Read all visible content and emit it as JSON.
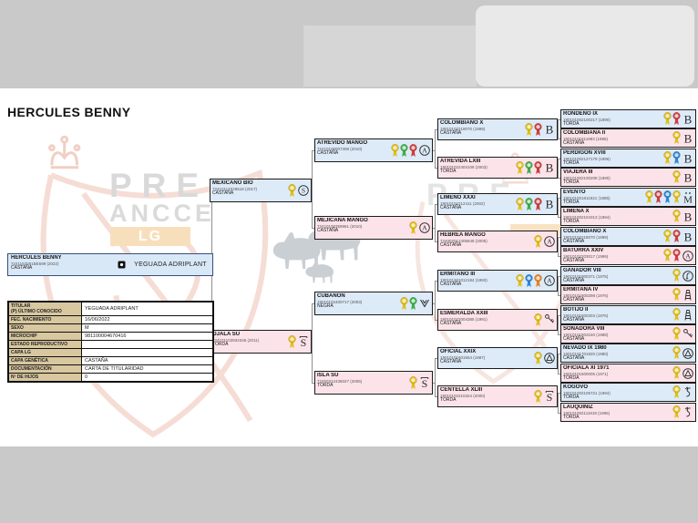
{
  "page": {
    "title": "HERCULES BENNY"
  },
  "watermark": {
    "line1": "PRE",
    "line2": "ANCCE",
    "badge": "LG"
  },
  "icons": {
    "subject_badge": "photo-icon",
    "brand_suffix": "brand-icon",
    "rosette": "rosette-icon"
  },
  "subject": {
    "name": "HERCULES BENNY",
    "code": "7241152001BE599 (2022)",
    "coat": "CASTAÑA",
    "owner": "YEGUADA ADRIPLANT"
  },
  "info_table": {
    "rows": [
      {
        "label": "TITULAR",
        "label2": "(P) ÚLTIMO CONOCIDO",
        "value": "YEGUADA ADRIPLANT"
      },
      {
        "label": "FEC. NACIMIENTO",
        "label2": "",
        "value": "16/06/2022"
      },
      {
        "label": "SEXO",
        "label2": "",
        "value": "M"
      },
      {
        "label": "MICROCHIP",
        "label2": "",
        "value": "981100004670416"
      },
      {
        "label": "ESTADO REPRODUCTIVO",
        "label2": "",
        "value": ""
      },
      {
        "label": "CAPA LG",
        "label2": "",
        "value": ""
      },
      {
        "label": "CAPA GENÉTICA",
        "label2": "",
        "value": "CASTAÑA"
      },
      {
        "label": "DOCUMENTACIÓN",
        "label2": "",
        "value": "CARTA DE TITULARIDAD"
      },
      {
        "label": "Nº DE HIJOS",
        "label2": "",
        "value": "0"
      }
    ]
  },
  "pedigree": {
    "generations": [
      [
        {
          "name": "MEXICANO BIO",
          "code": "72410117029518 (2017)",
          "coat": "CASTAÑA",
          "sex": "m",
          "rosettes": [
            "yellow"
          ],
          "brand": "circle-s"
        },
        {
          "name": "OJALA SU",
          "code": "724101102834345 (2011)",
          "coat": "TORDA",
          "sex": "f",
          "rosettes": [
            "yellow"
          ],
          "brand": "s-bar"
        }
      ],
      [
        {
          "name": "ATREVIDO MANGO",
          "code": "72410100007308 (2010)",
          "coat": "CASTAÑA",
          "sex": "m",
          "rosettes": [
            "yellow",
            "green",
            "red"
          ],
          "brand": "circle-a"
        },
        {
          "name": "MEJICANA MANGO",
          "code": "72410100358961 (2010)",
          "coat": "CASTAÑA",
          "sex": "f",
          "rosettes": [
            "yellow"
          ],
          "brand": "circle-a"
        },
        {
          "name": "CUBANON",
          "code": "19010102400717 (2003)",
          "coat": "NEGRA",
          "sex": "m",
          "rosettes": [
            "yellow",
            "green"
          ],
          "brand": "bird"
        },
        {
          "name": "ISLA SU",
          "code": "72450312436027 (2005)",
          "coat": "TORDA",
          "sex": "f",
          "rosettes": [
            "yellow"
          ],
          "brand": "s-bar"
        }
      ],
      [
        {
          "name": "COLOMBIANO X",
          "code": "19010102218070 (1999)",
          "coat": "CASTAÑA",
          "sex": "m",
          "rosettes": [
            "yellow",
            "red"
          ],
          "brand": "b"
        },
        {
          "name": "ATREVIDA LXIII",
          "code": "190101022404108 (2003)",
          "coat": "TORDA",
          "sex": "f",
          "rosettes": [
            "yellow",
            "green",
            "red"
          ],
          "brand": "b"
        },
        {
          "name": "LIMEÑO XXXI",
          "code": "19010102212411 (2002)",
          "coat": "CASTAÑA",
          "sex": "m",
          "rosettes": [
            "yellow",
            "green",
            "red"
          ],
          "brand": "b"
        },
        {
          "name": "HEBREA MANGO",
          "code": "724002012405848 (2005)",
          "coat": "CASTAÑA",
          "sex": "f",
          "rosettes": [
            "yellow"
          ],
          "brand": "circle-a"
        },
        {
          "name": "ERMITAÑO III",
          "code": "190101201012184 (1993)",
          "coat": "CASTAÑA",
          "sex": "m",
          "rosettes": [
            "yellow",
            "blue",
            "orange"
          ],
          "brand": "circle-a"
        },
        {
          "name": "ESMERALDA XXIII",
          "code": "190101022004385 (1991)",
          "coat": "CASTAÑA",
          "sex": "f",
          "rosettes": [
            "yellow"
          ],
          "brand": "key"
        },
        {
          "name": "OFICIAL XXIX",
          "code": "19010101601554 (1987)",
          "coat": "CASTAÑA",
          "sex": "m",
          "rosettes": [
            "yellow"
          ],
          "brand": "circle-tri"
        },
        {
          "name": "CENTELLA XLIII",
          "code": "19010102210324 (2000)",
          "coat": "TORDA",
          "sex": "f",
          "rosettes": [
            "yellow"
          ],
          "brand": "s-bar"
        }
      ],
      [
        {
          "name": "RONDEÑO IX",
          "code": "190101002100217 (1990)",
          "coat": "TORDA",
          "sex": "m",
          "rosettes": [
            "yellow",
            "red"
          ],
          "brand": "b"
        },
        {
          "name": "COLOMBIANA II",
          "code": "19010101811883 (1985)",
          "coat": "CASTAÑA",
          "sex": "f",
          "rosettes": [
            "yellow"
          ],
          "brand": "b"
        },
        {
          "name": "PERDIGON XVIII",
          "code": "190101002127179 (1996)",
          "coat": "TORDA",
          "sex": "m",
          "rosettes": [
            "yellow",
            "blue"
          ],
          "brand": "b"
        },
        {
          "name": "VIAJERA III",
          "code": "190101002100208 (1990)",
          "coat": "TORDA",
          "sex": "f",
          "rosettes": [
            "yellow"
          ],
          "brand": "b"
        },
        {
          "name": "EVENTO",
          "code": "190101001811921 (1985)",
          "coat": "TORDA",
          "sex": "m",
          "rosettes": [
            "yellow",
            "red",
            "blue",
            "yellow"
          ],
          "brand": "my"
        },
        {
          "name": "LIMEÑA X",
          "code": "190101002104313 (1994)",
          "coat": "TORDA",
          "sex": "f",
          "rosettes": [
            "yellow"
          ],
          "brand": "b"
        },
        {
          "name": "COLOMBIANO X",
          "code": "19010102218070 (1999)",
          "coat": "CASTAÑA",
          "sex": "m",
          "rosettes": [
            "yellow",
            "red"
          ],
          "brand": "b"
        },
        {
          "name": "BATURRA XXIV",
          "code": "19010102203017 (1999)",
          "coat": "CASTAÑA",
          "sex": "f",
          "rosettes": [
            "yellow",
            "red"
          ],
          "brand": "circle-a"
        },
        {
          "name": "GANADOR VIII",
          "code": "19010101800371 (1975)",
          "coat": "CASTAÑA",
          "sex": "m",
          "rosettes": [
            "yellow"
          ],
          "brand": "circle-hook"
        },
        {
          "name": "ERMITAÑA IV",
          "code": "19010101800298 (1976)",
          "coat": "CASTAÑA",
          "sex": "f",
          "rosettes": [
            "yellow"
          ],
          "brand": "ladder"
        },
        {
          "name": "BOTIJO II",
          "code": "19010101800303 (1976)",
          "coat": "CASTAÑA",
          "sex": "m",
          "rosettes": [
            "yellow"
          ],
          "brand": "ladder"
        },
        {
          "name": "SOÑADORA VIII",
          "code": "19010101803150 (1988)",
          "coat": "CASTAÑA",
          "sex": "f",
          "rosettes": [
            "yellow"
          ],
          "brand": "key"
        },
        {
          "name": "NEVADO IX 1980",
          "code": "19010101701820 (1980)",
          "coat": "CASTAÑA",
          "sex": "m",
          "rosettes": [
            "yellow"
          ],
          "brand": "circle-tri"
        },
        {
          "name": "OFICIALA XI 1971",
          "code": "19010101500005 (1971)",
          "coat": "TORDA",
          "sex": "f",
          "rosettes": [
            "yellow"
          ],
          "brand": "circle-tri"
        },
        {
          "name": "KOGOVO",
          "code": "190101002105721 (1994)",
          "coat": "TORDA",
          "sex": "m",
          "rosettes": [
            "yellow"
          ],
          "brand": "s-curl"
        },
        {
          "name": "LAUQUINIZ",
          "code": "190101002111919 (1995)",
          "coat": "TORDA",
          "sex": "f",
          "rosettes": [
            "yellow"
          ],
          "brand": "s-curl"
        }
      ]
    ]
  },
  "colors": {
    "male_box": "#ddeaf8",
    "female_box": "#fce3ea",
    "subject_box": "#d9e8f7",
    "label_cell": "#d8c79f",
    "rosette": {
      "yellow": "#e2bf17",
      "green": "#3fae49",
      "red": "#cf3d3d",
      "blue": "#2e86d4",
      "orange": "#e8821e"
    }
  }
}
